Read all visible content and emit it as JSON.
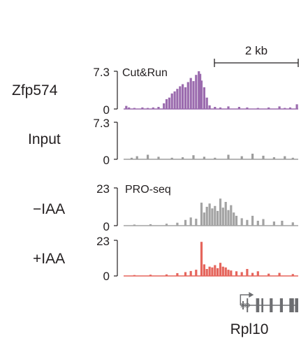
{
  "chart_data": {
    "type": "area",
    "title": "",
    "xlabel": "",
    "ylabel": "",
    "scale_bar": {
      "label": "2 kb",
      "length_kb": 2
    },
    "x_range_kb": [
      0,
      6.5
    ],
    "tracks": [
      {
        "row_label": "Zfp574",
        "track_title": "Cut&Run",
        "ylim": [
          0,
          7.3
        ],
        "ymax_label": "7.3",
        "ymin_label": "0",
        "color": "#9b6bae",
        "x_kb": [
          0.1,
          0.2,
          0.4,
          0.7,
          0.9,
          1.1,
          1.3,
          1.5,
          1.6,
          1.7,
          1.8,
          1.9,
          2.0,
          2.1,
          2.2,
          2.3,
          2.4,
          2.5,
          2.6,
          2.7,
          2.8,
          2.85,
          2.9,
          3.0,
          3.1,
          3.2,
          3.4,
          3.6,
          3.9,
          4.3,
          4.6,
          5.0,
          5.4,
          5.8,
          6.0,
          6.2,
          6.45
        ],
        "values": [
          0.6,
          0.3,
          0.2,
          0.3,
          0.2,
          0.3,
          0.4,
          1.1,
          1.9,
          2.2,
          3.0,
          3.4,
          3.9,
          4.4,
          4.8,
          4.2,
          5.2,
          6.0,
          5.4,
          6.6,
          7.3,
          6.8,
          5.5,
          4.2,
          2.2,
          0.7,
          0.4,
          0.3,
          0.5,
          0.4,
          0.3,
          0.2,
          0.3,
          0.5,
          0.2,
          0.3,
          0.9
        ]
      },
      {
        "row_label": "Input",
        "track_title": "",
        "ylim": [
          0,
          7.3
        ],
        "ymax_label": "7.3",
        "ymin_label": "0",
        "color": "#9d9d9d",
        "x_kb": [
          0.3,
          0.5,
          0.9,
          1.3,
          1.8,
          2.2,
          2.6,
          3.0,
          3.4,
          3.9,
          4.4,
          4.8,
          5.2,
          5.6,
          6.0,
          6.3
        ],
        "values": [
          0.3,
          0.6,
          0.9,
          0.5,
          0.3,
          0.4,
          0.8,
          0.5,
          0.3,
          0.9,
          0.6,
          1.1,
          0.7,
          0.4,
          0.6,
          0.3
        ]
      },
      {
        "row_label": "−IAA",
        "track_title": "PRO-seq",
        "ylim": [
          0,
          23
        ],
        "ymax_label": "23",
        "ymin_label": "0",
        "color": "#a3a3a3",
        "x_kb": [
          0.4,
          1.0,
          1.6,
          2.0,
          2.3,
          2.5,
          2.7,
          2.9,
          3.0,
          3.1,
          3.2,
          3.3,
          3.4,
          3.5,
          3.6,
          3.7,
          3.8,
          3.9,
          4.0,
          4.1,
          4.2,
          4.4,
          4.6,
          4.8,
          5.0,
          5.2,
          5.6,
          5.9,
          6.3
        ],
        "values": [
          0.7,
          0.9,
          1.2,
          1.8,
          3.5,
          5.0,
          4.2,
          14.0,
          8.0,
          11.5,
          13.5,
          10.5,
          12.0,
          9.0,
          16.5,
          11.0,
          14.5,
          9.5,
          12.5,
          8.0,
          6.0,
          4.5,
          3.5,
          6.0,
          3.0,
          4.0,
          2.5,
          3.0,
          2.0
        ]
      },
      {
        "row_label": "+IAA",
        "track_title": "",
        "ylim": [
          0,
          23
        ],
        "ymax_label": "23",
        "ymin_label": "0",
        "color": "#e5655c",
        "x_kb": [
          0.4,
          1.0,
          1.6,
          2.0,
          2.3,
          2.5,
          2.7,
          2.9,
          3.0,
          3.1,
          3.2,
          3.3,
          3.4,
          3.5,
          3.6,
          3.7,
          3.8,
          3.9,
          4.0,
          4.2,
          4.4,
          4.6,
          4.8,
          5.0,
          5.4,
          5.8,
          6.3
        ],
        "values": [
          0.6,
          0.8,
          1.0,
          1.8,
          2.5,
          3.2,
          4.0,
          22.0,
          7.5,
          4.5,
          6.0,
          5.5,
          7.0,
          5.0,
          8.5,
          6.0,
          5.5,
          4.0,
          3.5,
          3.0,
          2.5,
          4.5,
          2.0,
          3.0,
          1.5,
          2.0,
          1.2
        ]
      }
    ],
    "gene": {
      "name": "Rpl10",
      "strand": "+",
      "tss_kb": 4.35,
      "end_kb": 6.5,
      "exons_kb": [
        [
          4.42,
          4.47
        ],
        [
          4.58,
          4.6
        ],
        [
          4.93,
          5.05
        ],
        [
          5.13,
          5.2
        ],
        [
          5.44,
          5.55
        ],
        [
          5.82,
          5.93
        ],
        [
          6.17,
          6.34
        ],
        [
          6.38,
          6.5
        ]
      ]
    }
  }
}
